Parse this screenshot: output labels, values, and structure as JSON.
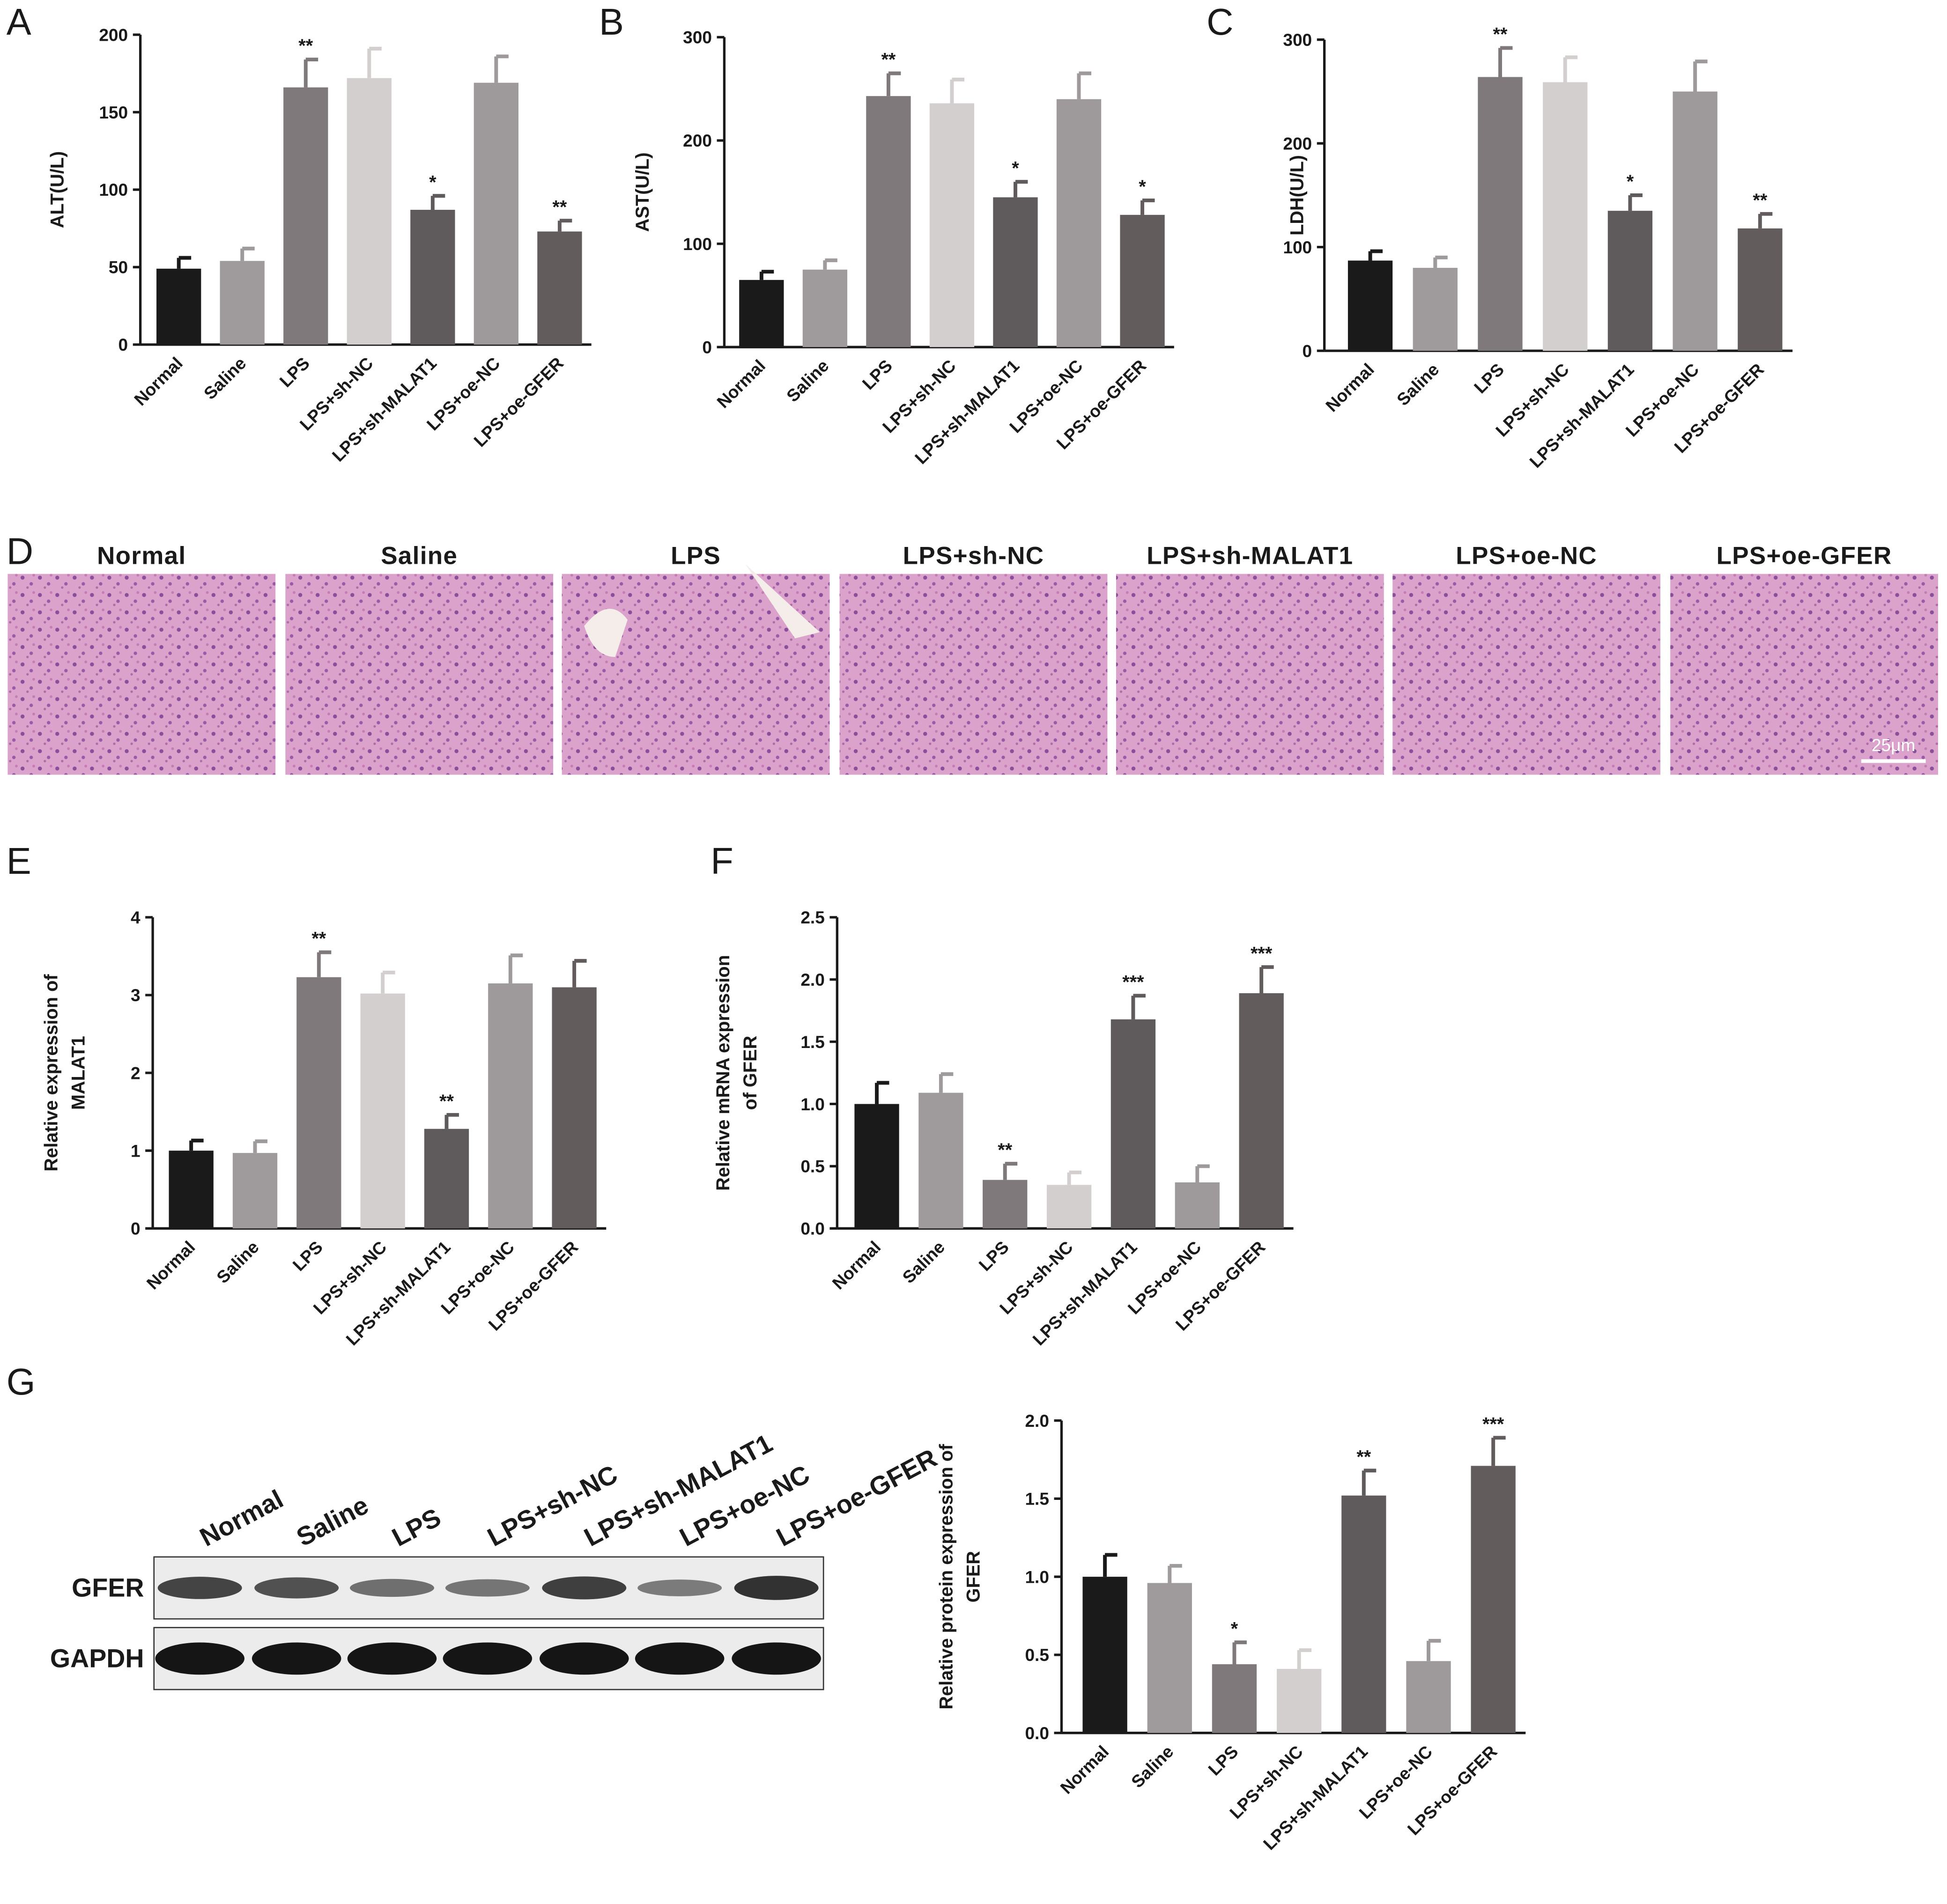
{
  "chart_data": [
    {
      "type": "bar",
      "panel": "A",
      "ylabel": [
        "ALT(U/L)"
      ],
      "categories": [
        "Normal",
        "Saline",
        "LPS",
        "LPS+sh-NC",
        "LPS+sh-MALAT1",
        "LPS+oe-NC",
        "LPS+oe-GFER"
      ],
      "values": [
        49,
        54,
        166,
        172,
        87,
        169,
        73
      ],
      "errors": [
        7,
        8,
        18,
        19,
        9,
        17,
        7
      ],
      "annotations": [
        null,
        null,
        "**",
        null,
        "*",
        null,
        "**"
      ],
      "colors": [
        "#1a1a1a",
        "#9f9a9c",
        "#7f797b",
        "#d4cfcf",
        "#5f5a5b",
        "#9e999b",
        "#625c5d"
      ],
      "ylim": [
        0,
        200
      ],
      "yticks": [
        0,
        50,
        100,
        150,
        200
      ]
    },
    {
      "type": "bar",
      "panel": "B",
      "ylabel": [
        "AST(U/L)"
      ],
      "categories": [
        "Normal",
        "Saline",
        "LPS",
        "LPS+sh-NC",
        "LPS+sh-MALAT1",
        "LPS+oe-NC",
        "LPS+oe-GFER"
      ],
      "values": [
        65,
        75,
        243,
        236,
        145,
        240,
        128
      ],
      "errors": [
        8,
        9,
        22,
        23,
        15,
        25,
        14
      ],
      "annotations": [
        null,
        null,
        "**",
        null,
        "*",
        null,
        "*"
      ],
      "colors": [
        "#1a1a1a",
        "#9f9a9c",
        "#7f797b",
        "#d4cfcf",
        "#5f5a5b",
        "#9e999b",
        "#625c5d"
      ],
      "ylim": [
        0,
        300
      ],
      "yticks": [
        0,
        100,
        200,
        300
      ]
    },
    {
      "type": "bar",
      "panel": "C",
      "ylabel": [
        "LDH(U/L)"
      ],
      "categories": [
        "Normal",
        "Saline",
        "LPS",
        "LPS+sh-NC",
        "LPS+sh-MALAT1",
        "LPS+oe-NC",
        "LPS+oe-GFER"
      ],
      "values": [
        87,
        80,
        264,
        259,
        135,
        250,
        118
      ],
      "errors": [
        9,
        10,
        28,
        24,
        15,
        29,
        14
      ],
      "annotations": [
        null,
        null,
        "**",
        null,
        "*",
        null,
        "**"
      ],
      "colors": [
        "#1a1a1a",
        "#9f9a9c",
        "#7f797b",
        "#d4cfcf",
        "#5f5a5b",
        "#9e999b",
        "#625c5d"
      ],
      "ylim": [
        0,
        300
      ],
      "yticks": [
        0,
        100,
        200,
        300
      ]
    },
    {
      "type": "bar",
      "panel": "E",
      "ylabel": [
        "Relative expression of",
        "MALAT1"
      ],
      "categories": [
        "Normal",
        "Saline",
        "LPS",
        "LPS+sh-NC",
        "LPS+sh-MALAT1",
        "LPS+oe-NC",
        "LPS+oe-GFER"
      ],
      "values": [
        1.0,
        0.97,
        3.23,
        3.02,
        1.28,
        3.15,
        3.1
      ],
      "errors": [
        0.13,
        0.15,
        0.32,
        0.27,
        0.18,
        0.36,
        0.34
      ],
      "annotations": [
        null,
        null,
        "**",
        null,
        "**",
        null,
        null
      ],
      "colors": [
        "#1a1a1a",
        "#9f9a9c",
        "#7f797b",
        "#d4cfcf",
        "#5f5a5b",
        "#9e999b",
        "#625c5d"
      ],
      "ylim": [
        0,
        4
      ],
      "yticks": [
        0,
        1,
        2,
        3,
        4
      ]
    },
    {
      "type": "bar",
      "panel": "F",
      "ylabel": [
        "Relative mRNA expression",
        "of GFER"
      ],
      "categories": [
        "Normal",
        "Saline",
        "LPS",
        "LPS+sh-NC",
        "LPS+sh-MALAT1",
        "LPS+oe-NC",
        "LPS+oe-GFER"
      ],
      "values": [
        1.0,
        1.09,
        0.39,
        0.35,
        1.68,
        0.37,
        1.89
      ],
      "errors": [
        0.17,
        0.15,
        0.13,
        0.1,
        0.19,
        0.13,
        0.21
      ],
      "annotations": [
        null,
        null,
        "**",
        null,
        "***",
        null,
        "***"
      ],
      "colors": [
        "#1a1a1a",
        "#9f9a9c",
        "#7f797b",
        "#d4cfcf",
        "#5f5a5b",
        "#9e999b",
        "#625c5d"
      ],
      "ylim": [
        0,
        2.5
      ],
      "yticks": [
        {
          "value": 0,
          "label": "0.0"
        },
        0.5,
        {
          "value": 1,
          "label": "1.0"
        },
        1.5,
        {
          "value": 2,
          "label": "2.0"
        },
        2.5
      ]
    },
    {
      "type": "bar",
      "ylabel": [
        "Relative protein expression of",
        "GFER"
      ],
      "categories": [
        "Normal",
        "Saline",
        "LPS",
        "LPS+sh-NC",
        "LPS+sh-MALAT1",
        "LPS+oe-NC",
        "LPS+oe-GFER"
      ],
      "values": [
        1.0,
        0.96,
        0.44,
        0.41,
        1.52,
        0.46,
        1.71
      ],
      "errors": [
        0.14,
        0.11,
        0.14,
        0.12,
        0.16,
        0.13,
        0.18
      ],
      "annotations": [
        null,
        null,
        "*",
        null,
        "**",
        null,
        "***"
      ],
      "colors": [
        "#1a1a1a",
        "#9f9a9c",
        "#7f797b",
        "#d4cfcf",
        "#5f5a5b",
        "#9e999b",
        "#625c5d"
      ],
      "ylim": [
        0,
        2
      ],
      "yticks": [
        {
          "value": 0,
          "label": "0.0"
        },
        0.5,
        {
          "value": 1,
          "label": "1.0"
        },
        1.5,
        {
          "value": 2,
          "label": "2.0"
        }
      ]
    }
  ],
  "histology": {
    "panel": "D",
    "titles": [
      "Normal",
      "Saline",
      "LPS",
      "LPS+sh-NC",
      "LPS+sh-MALAT1",
      "LPS+oe-NC",
      "LPS+oe-GFER"
    ],
    "scale_bar": "25μm"
  },
  "western_blot": {
    "panel": "G",
    "lanes": [
      "Normal",
      "Saline",
      "LPS",
      "LPS+sh-NC",
      "LPS+sh-MALAT1",
      "LPS+oe-NC",
      "LPS+oe-GFER"
    ],
    "rows": [
      "GFER",
      "GAPDH"
    ]
  }
}
